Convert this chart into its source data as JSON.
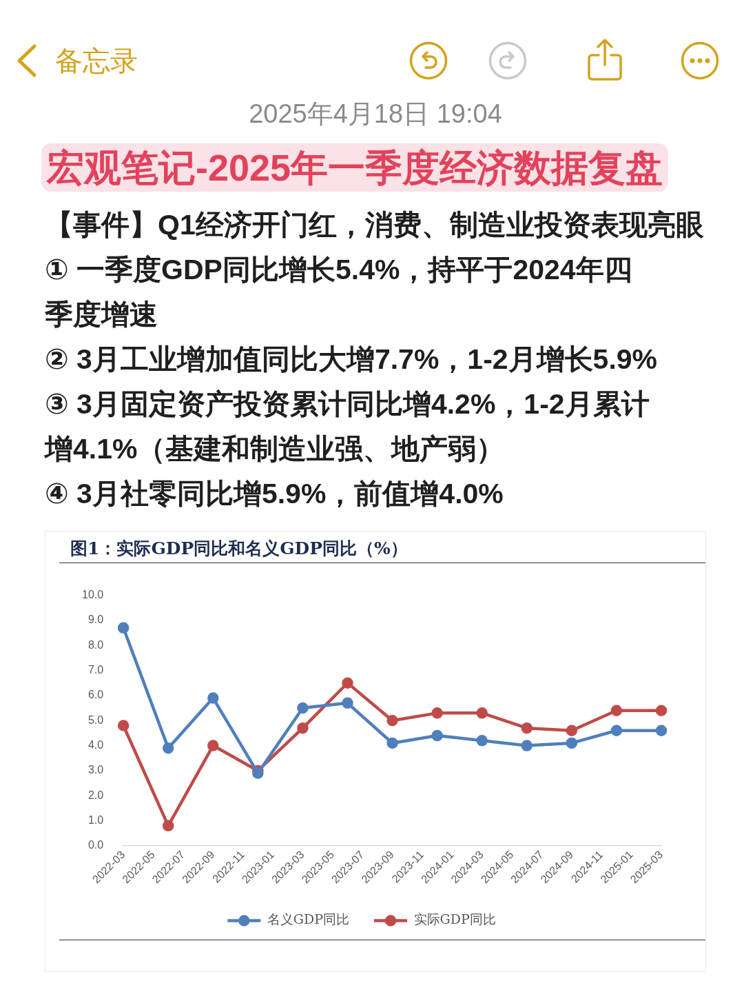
{
  "chart_data": {
    "type": "line",
    "title": "图1：实际GDP同比和名义GDP同比（%）",
    "annotations": [
      "备忘录",
      "2025年4月18日 19:04",
      "宏观笔记-2025年一季度经济数据复盘",
      "【事件】Q1经济开门红，消费、制造业投资表现亮眼",
      "① 一季度GDP同比增长5.4%，持平于2024年四季度增速",
      "② 3月工业增加值同比大增7.7%，1-2月增长5.9%",
      "③ 3月固定资产投资累计同比增4.2%，1-2月累计增4.1%（基建和制造业强、地产弱）",
      "④ 3月社零同比增5.9%，前值增4.0%"
    ],
    "x": [
      "2022-03",
      "2022-06",
      "2022-09",
      "2022-12",
      "2023-03",
      "2023-06",
      "2023-09",
      "2023-12",
      "2024-03",
      "2024-06",
      "2024-09",
      "2024-12",
      "2025-03"
    ],
    "xlim": [
      "2022-03",
      "2025-03"
    ],
    "xticks": [
      "2022-03",
      "2022-05",
      "2022-07",
      "2022-09",
      "2022-11",
      "2023-01",
      "2023-03",
      "2023-05",
      "2023-07",
      "2023-09",
      "2023-11",
      "2024-01",
      "2024-03",
      "2024-05",
      "2024-07",
      "2024-09",
      "2024-11",
      "2025-01",
      "2025-03"
    ],
    "ylim": [
      0,
      10
    ],
    "yticks": [
      {
        "value": 0,
        "label": "0.0"
      },
      {
        "value": 1,
        "label": "1.0"
      },
      {
        "value": 2,
        "label": "2.0"
      },
      {
        "value": 3,
        "label": "3.0"
      },
      {
        "value": 4,
        "label": "4.0"
      },
      {
        "value": 5,
        "label": "5.0"
      },
      {
        "value": 6,
        "label": "6.0"
      },
      {
        "value": 7,
        "label": "7.0"
      },
      {
        "value": 8,
        "label": "8.0"
      },
      {
        "value": 9,
        "label": "9.0"
      },
      {
        "value": 10,
        "label": "10.0"
      }
    ],
    "series": [
      {
        "name": "名义GDP同比",
        "color": "#4f7fbd",
        "values": [
          8.7,
          3.9,
          5.9,
          2.9,
          5.5,
          5.7,
          4.1,
          4.4,
          4.2,
          4.0,
          4.1,
          4.6,
          4.6
        ]
      },
      {
        "name": "实际GDP同比",
        "color": "#bf4b48",
        "values": [
          4.8,
          0.8,
          4.0,
          3.0,
          4.7,
          6.5,
          5.0,
          5.3,
          5.3,
          4.7,
          4.6,
          5.4,
          5.4
        ]
      }
    ],
    "legend": "bottom",
    "marker": "circle",
    "line_style": "solid"
  }
}
